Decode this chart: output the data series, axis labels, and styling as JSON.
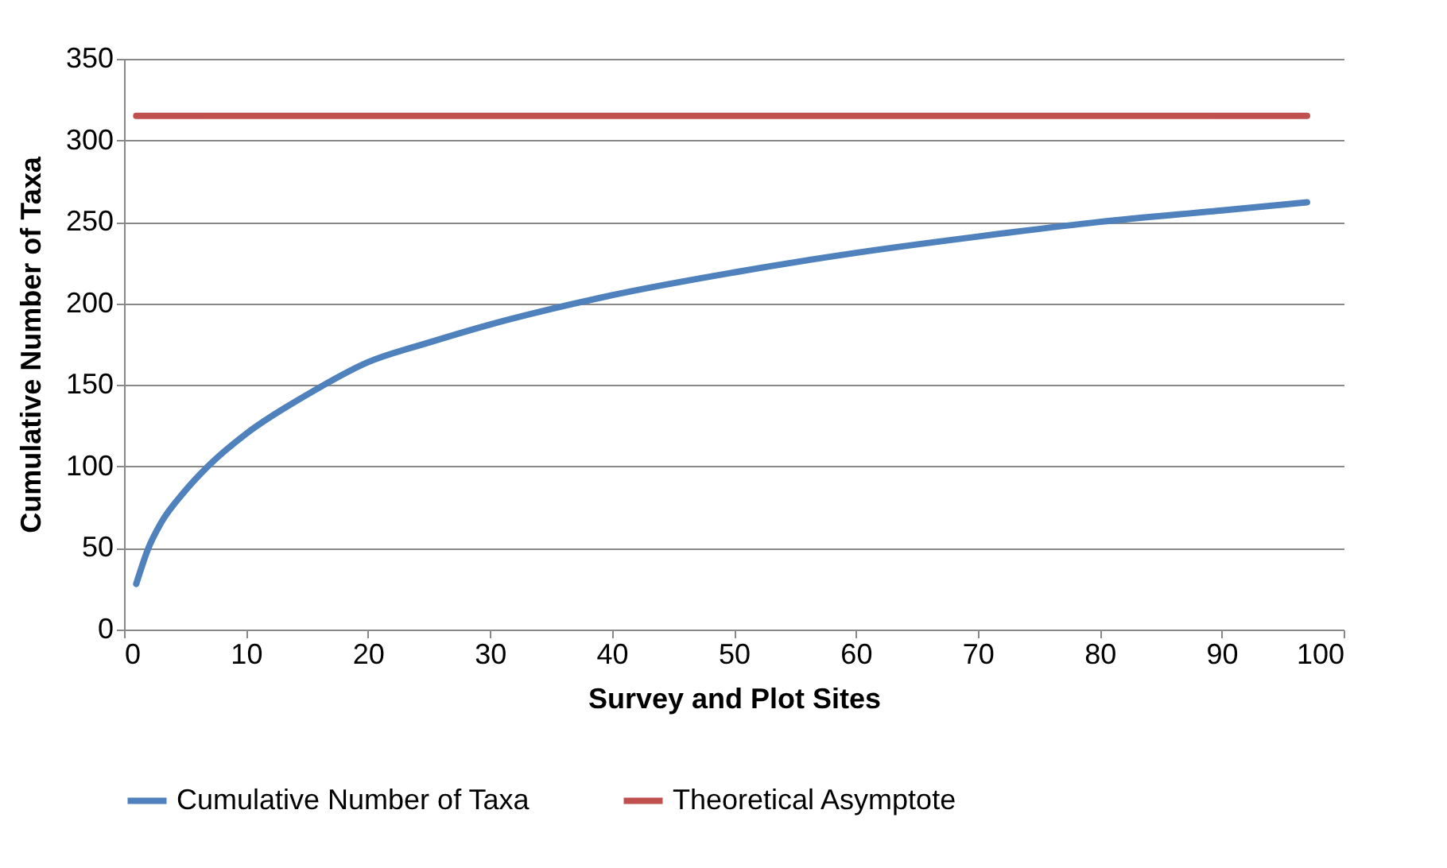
{
  "chart_data": {
    "type": "line",
    "xlabel": "Survey and Plot Sites",
    "ylabel": "Cumulative Number of Taxa",
    "xlim": [
      0,
      100
    ],
    "ylim": [
      0,
      350
    ],
    "xticks": [
      0,
      10,
      20,
      30,
      40,
      50,
      60,
      70,
      80,
      90,
      100
    ],
    "yticks": [
      0,
      50,
      100,
      150,
      200,
      250,
      300,
      350
    ],
    "grid": "y",
    "legend": "bottom",
    "marker": "none",
    "line_style": "solid",
    "series": [
      {
        "name": "Cumulative Number of Taxa",
        "color": "#4f81bd",
        "x": [
          1,
          2,
          3,
          5,
          7,
          10,
          15,
          20,
          25,
          30,
          37,
          40,
          50,
          60,
          70,
          80,
          90,
          97
        ],
        "values": [
          28,
          50,
          65,
          85,
          101,
          120,
          144,
          164,
          176,
          187,
          200,
          205,
          219,
          231,
          241,
          250,
          257,
          262
        ]
      },
      {
        "name": "Theoretical Asymptote",
        "color": "#c0504d",
        "x": [
          1,
          97
        ],
        "values": [
          315,
          315
        ]
      }
    ]
  }
}
